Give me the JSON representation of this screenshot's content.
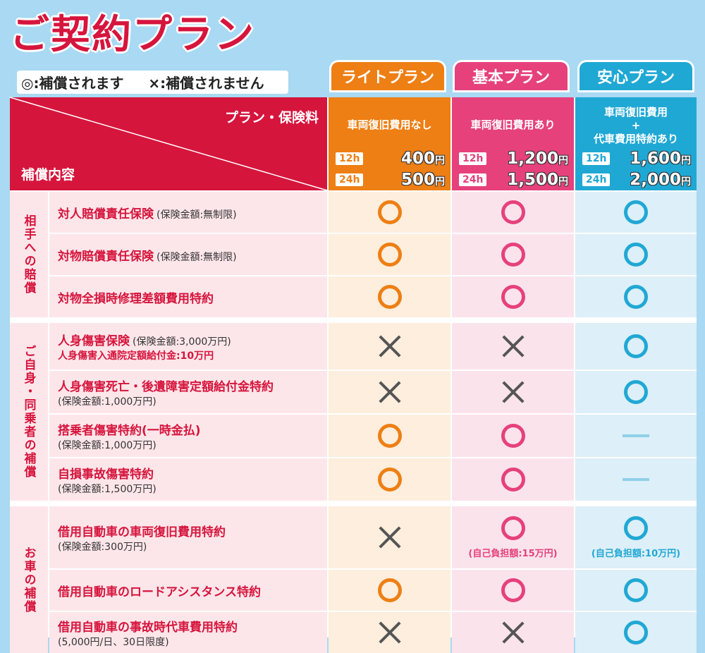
{
  "title": "ご契約プラン",
  "legend": {
    "covered": "◎:補償されます",
    "not_covered": "×:補償されません"
  },
  "plans": [
    {
      "name": "ライトプラン",
      "desc_lines": [
        "車両復旧費用なし"
      ],
      "p12": "400",
      "p24": "500"
    },
    {
      "name": "基本プラン",
      "desc_lines": [
        "車両復旧費用あり"
      ],
      "p12": "1,200",
      "p24": "1,500"
    },
    {
      "name": "安心プラン",
      "desc_lines": [
        "車両復旧費用",
        "+",
        "代車費用特約あり"
      ],
      "p12": "1,600",
      "p24": "2,000"
    }
  ],
  "labels": {
    "h12": "12h",
    "h24": "24h",
    "yen": "円",
    "plan_fee": "プラン・保険料",
    "hosho": "補償内容"
  },
  "categories": [
    {
      "label": "相手への賠償"
    },
    {
      "label": "ご自身・同乗者の補償"
    },
    {
      "label": "お車の補償"
    }
  ],
  "rows": [
    {
      "name": "対人賠償責任保険",
      "inline_sub": "(保険金額:無制限)",
      "sub": "",
      "sub_red": "",
      "marks": [
        "o",
        "o",
        "o"
      ]
    },
    {
      "name": "対物賠償責任保険",
      "inline_sub": "(保険金額:無制限)",
      "sub": "",
      "sub_red": "",
      "marks": [
        "o",
        "o",
        "o"
      ]
    },
    {
      "name": "対物全損時修理差額費用特約",
      "inline_sub": "",
      "sub": "",
      "sub_red": "",
      "marks": [
        "o",
        "o",
        "o"
      ]
    },
    {
      "name": "人身傷害保険",
      "inline_sub": "(保険金額:3,000万円)",
      "sub": "",
      "sub_red": "人身傷害入通院定額給付金:10万円",
      "marks": [
        "x",
        "x",
        "o"
      ]
    },
    {
      "name": "人身傷害死亡・後遺障害定額給付金特約",
      "inline_sub": "",
      "sub": "(保険金額:1,000万円)",
      "sub_red": "",
      "marks": [
        "x",
        "x",
        "o"
      ]
    },
    {
      "name": "搭乗者傷害特約(一時金払)",
      "inline_sub": "",
      "sub": "(保険金額:1,000万円)",
      "sub_red": "",
      "marks": [
        "o",
        "o",
        "-"
      ]
    },
    {
      "name": "自損事故傷害特約",
      "inline_sub": "",
      "sub": "(保険金額:1,500万円)",
      "sub_red": "",
      "marks": [
        "o",
        "o",
        "-"
      ]
    },
    {
      "name": "借用自動車の車両復旧費用特約",
      "inline_sub": "",
      "sub": "(保険金額:300万円)",
      "sub_red": "",
      "marks": [
        "x",
        "o",
        "o"
      ],
      "notes": [
        "",
        "(自己負担額:15万円)",
        "(自己負担額:10万円)"
      ]
    },
    {
      "name": "借用自動車のロードアシスタンス特約",
      "inline_sub": "",
      "sub": "",
      "sub_red": "",
      "marks": [
        "o",
        "o",
        "o"
      ]
    },
    {
      "name": "借用自動車の事故時代車費用特約",
      "inline_sub": "",
      "sub": "(5,000円/日、30日限度)",
      "sub_red": "",
      "marks": [
        "x",
        "x",
        "o"
      ]
    }
  ]
}
